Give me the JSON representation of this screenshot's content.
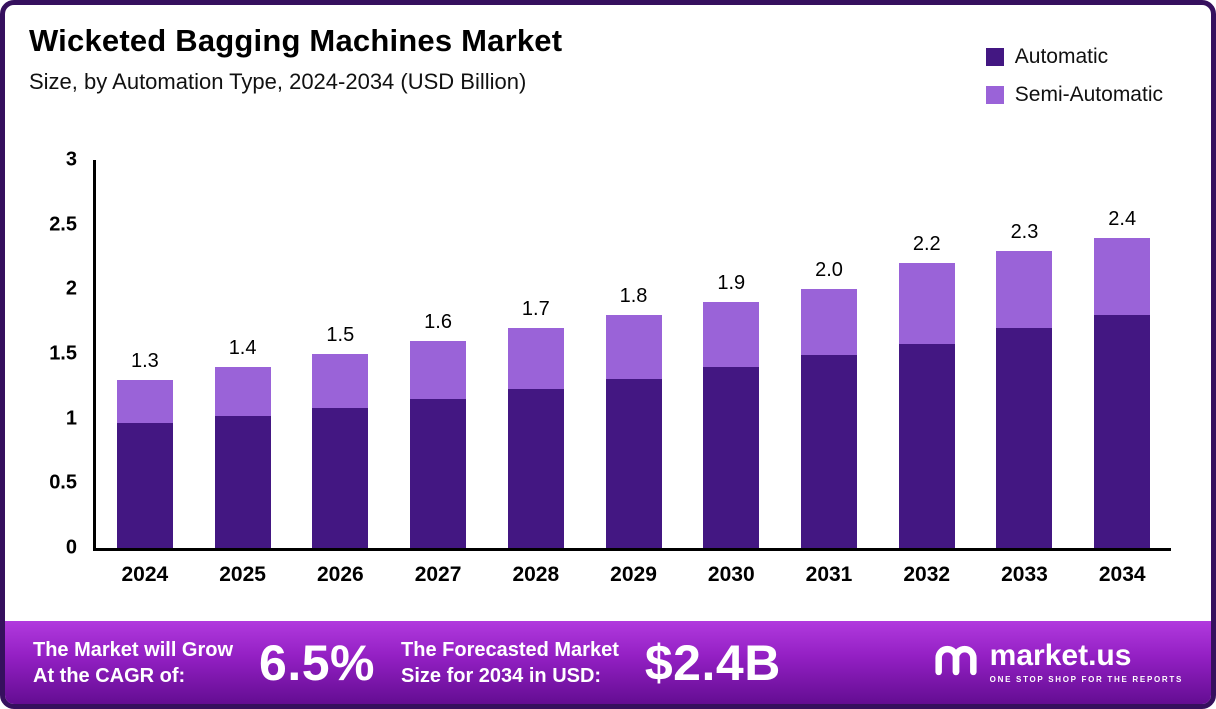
{
  "header": {
    "title": "Wicketed Bagging Machines Market",
    "subtitle": "Size, by Automation Type, 2024-2034 (USD Billion)"
  },
  "legend": [
    {
      "label": "Automatic",
      "color": "#431782"
    },
    {
      "label": "Semi-Automatic",
      "color": "#9a63d8"
    }
  ],
  "chart_data": {
    "type": "bar",
    "stacked": true,
    "title": "Wicketed Bagging Machines Market Size, by Automation Type, 2024-2034 (USD Billion)",
    "categories": [
      "2024",
      "2025",
      "2026",
      "2027",
      "2028",
      "2029",
      "2030",
      "2031",
      "2032",
      "2033",
      "2034"
    ],
    "series": [
      {
        "name": "Automatic",
        "color": "#431782",
        "values": [
          0.97,
          1.02,
          1.08,
          1.15,
          1.23,
          1.31,
          1.4,
          1.49,
          1.58,
          1.7,
          1.8
        ]
      },
      {
        "name": "Semi-Automatic",
        "color": "#9a63d8",
        "values": [
          0.33,
          0.38,
          0.42,
          0.45,
          0.47,
          0.49,
          0.5,
          0.51,
          0.62,
          0.6,
          0.6
        ]
      }
    ],
    "totals": [
      "1.3",
      "1.4",
      "1.5",
      "1.6",
      "1.7",
      "1.8",
      "1.9",
      "2.0",
      "2.2",
      "2.3",
      "2.4"
    ],
    "xlabel": "",
    "ylabel": "",
    "ylim": [
      0,
      3
    ],
    "yticks": [
      "3",
      "2.5",
      "2",
      "1.5",
      "1",
      "0.5",
      "0"
    ],
    "grid": false,
    "legend_position": "top-right"
  },
  "footer": {
    "cagr_label": [
      "The Market will Grow",
      "At the CAGR of:"
    ],
    "cagr_value": "6.5%",
    "forecast_label": [
      "The Forecasted Market",
      "Size for 2034 in USD:"
    ],
    "forecast_value": "$2.4B",
    "brand": "market.us",
    "tagline": "ONE STOP SHOP FOR THE REPORTS"
  },
  "colors": {
    "frame": "#36105e",
    "banner_gradient_top": "#b13ade",
    "banner_gradient_bottom": "#640d92",
    "automatic": "#431782",
    "semi_automatic": "#9a63d8"
  }
}
